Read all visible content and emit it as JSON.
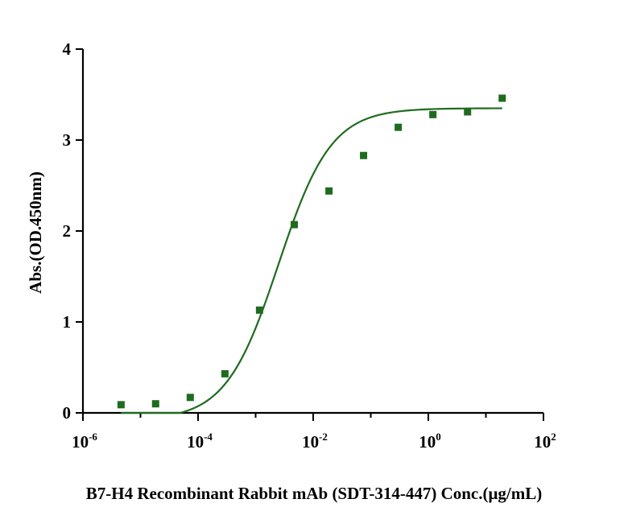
{
  "chart_data": {
    "type": "scatter",
    "title": "",
    "xlabel": "B7-H4 Recombinant Rabbit mAb (SDT-314-447) Conc.(μg/mL)",
    "ylabel": "Abs.(OD.450nm)",
    "x_scale": "log10",
    "xlim": [
      1e-06,
      100
    ],
    "ylim": [
      0,
      4
    ],
    "x_ticks": [
      {
        "base": "10",
        "exp": "-6",
        "value": 1e-06
      },
      {
        "base": "10",
        "exp": "-4",
        "value": 0.0001
      },
      {
        "base": "10",
        "exp": "-2",
        "value": 0.01
      },
      {
        "base": "10",
        "exp": "0",
        "value": 1
      },
      {
        "base": "10",
        "exp": "2",
        "value": 100
      }
    ],
    "y_ticks": [
      "0",
      "1",
      "2",
      "3",
      "4"
    ],
    "grid": false,
    "color": "#1f6b1f",
    "series": [
      {
        "points": [
          {
            "x": 4.6e-06,
            "y": 0.09
          },
          {
            "x": 1.83e-05,
            "y": 0.1
          },
          {
            "x": 7.32e-05,
            "y": 0.17
          },
          {
            "x": 0.000293,
            "y": 0.43
          },
          {
            "x": 0.00117,
            "y": 1.13
          },
          {
            "x": 0.00469,
            "y": 2.07
          },
          {
            "x": 0.0188,
            "y": 2.44
          },
          {
            "x": 0.075,
            "y": 2.83
          },
          {
            "x": 0.3,
            "y": 3.14
          },
          {
            "x": 1.2,
            "y": 3.28
          },
          {
            "x": 4.8,
            "y": 3.31
          },
          {
            "x": 19.2,
            "y": 3.46
          }
        ],
        "fit": {
          "model": "4PL",
          "bottom": -0.08,
          "top": 3.35,
          "ec50": 0.0025,
          "hill": 0.95,
          "x_range": [
            4.6e-06,
            19.2
          ]
        }
      }
    ]
  }
}
